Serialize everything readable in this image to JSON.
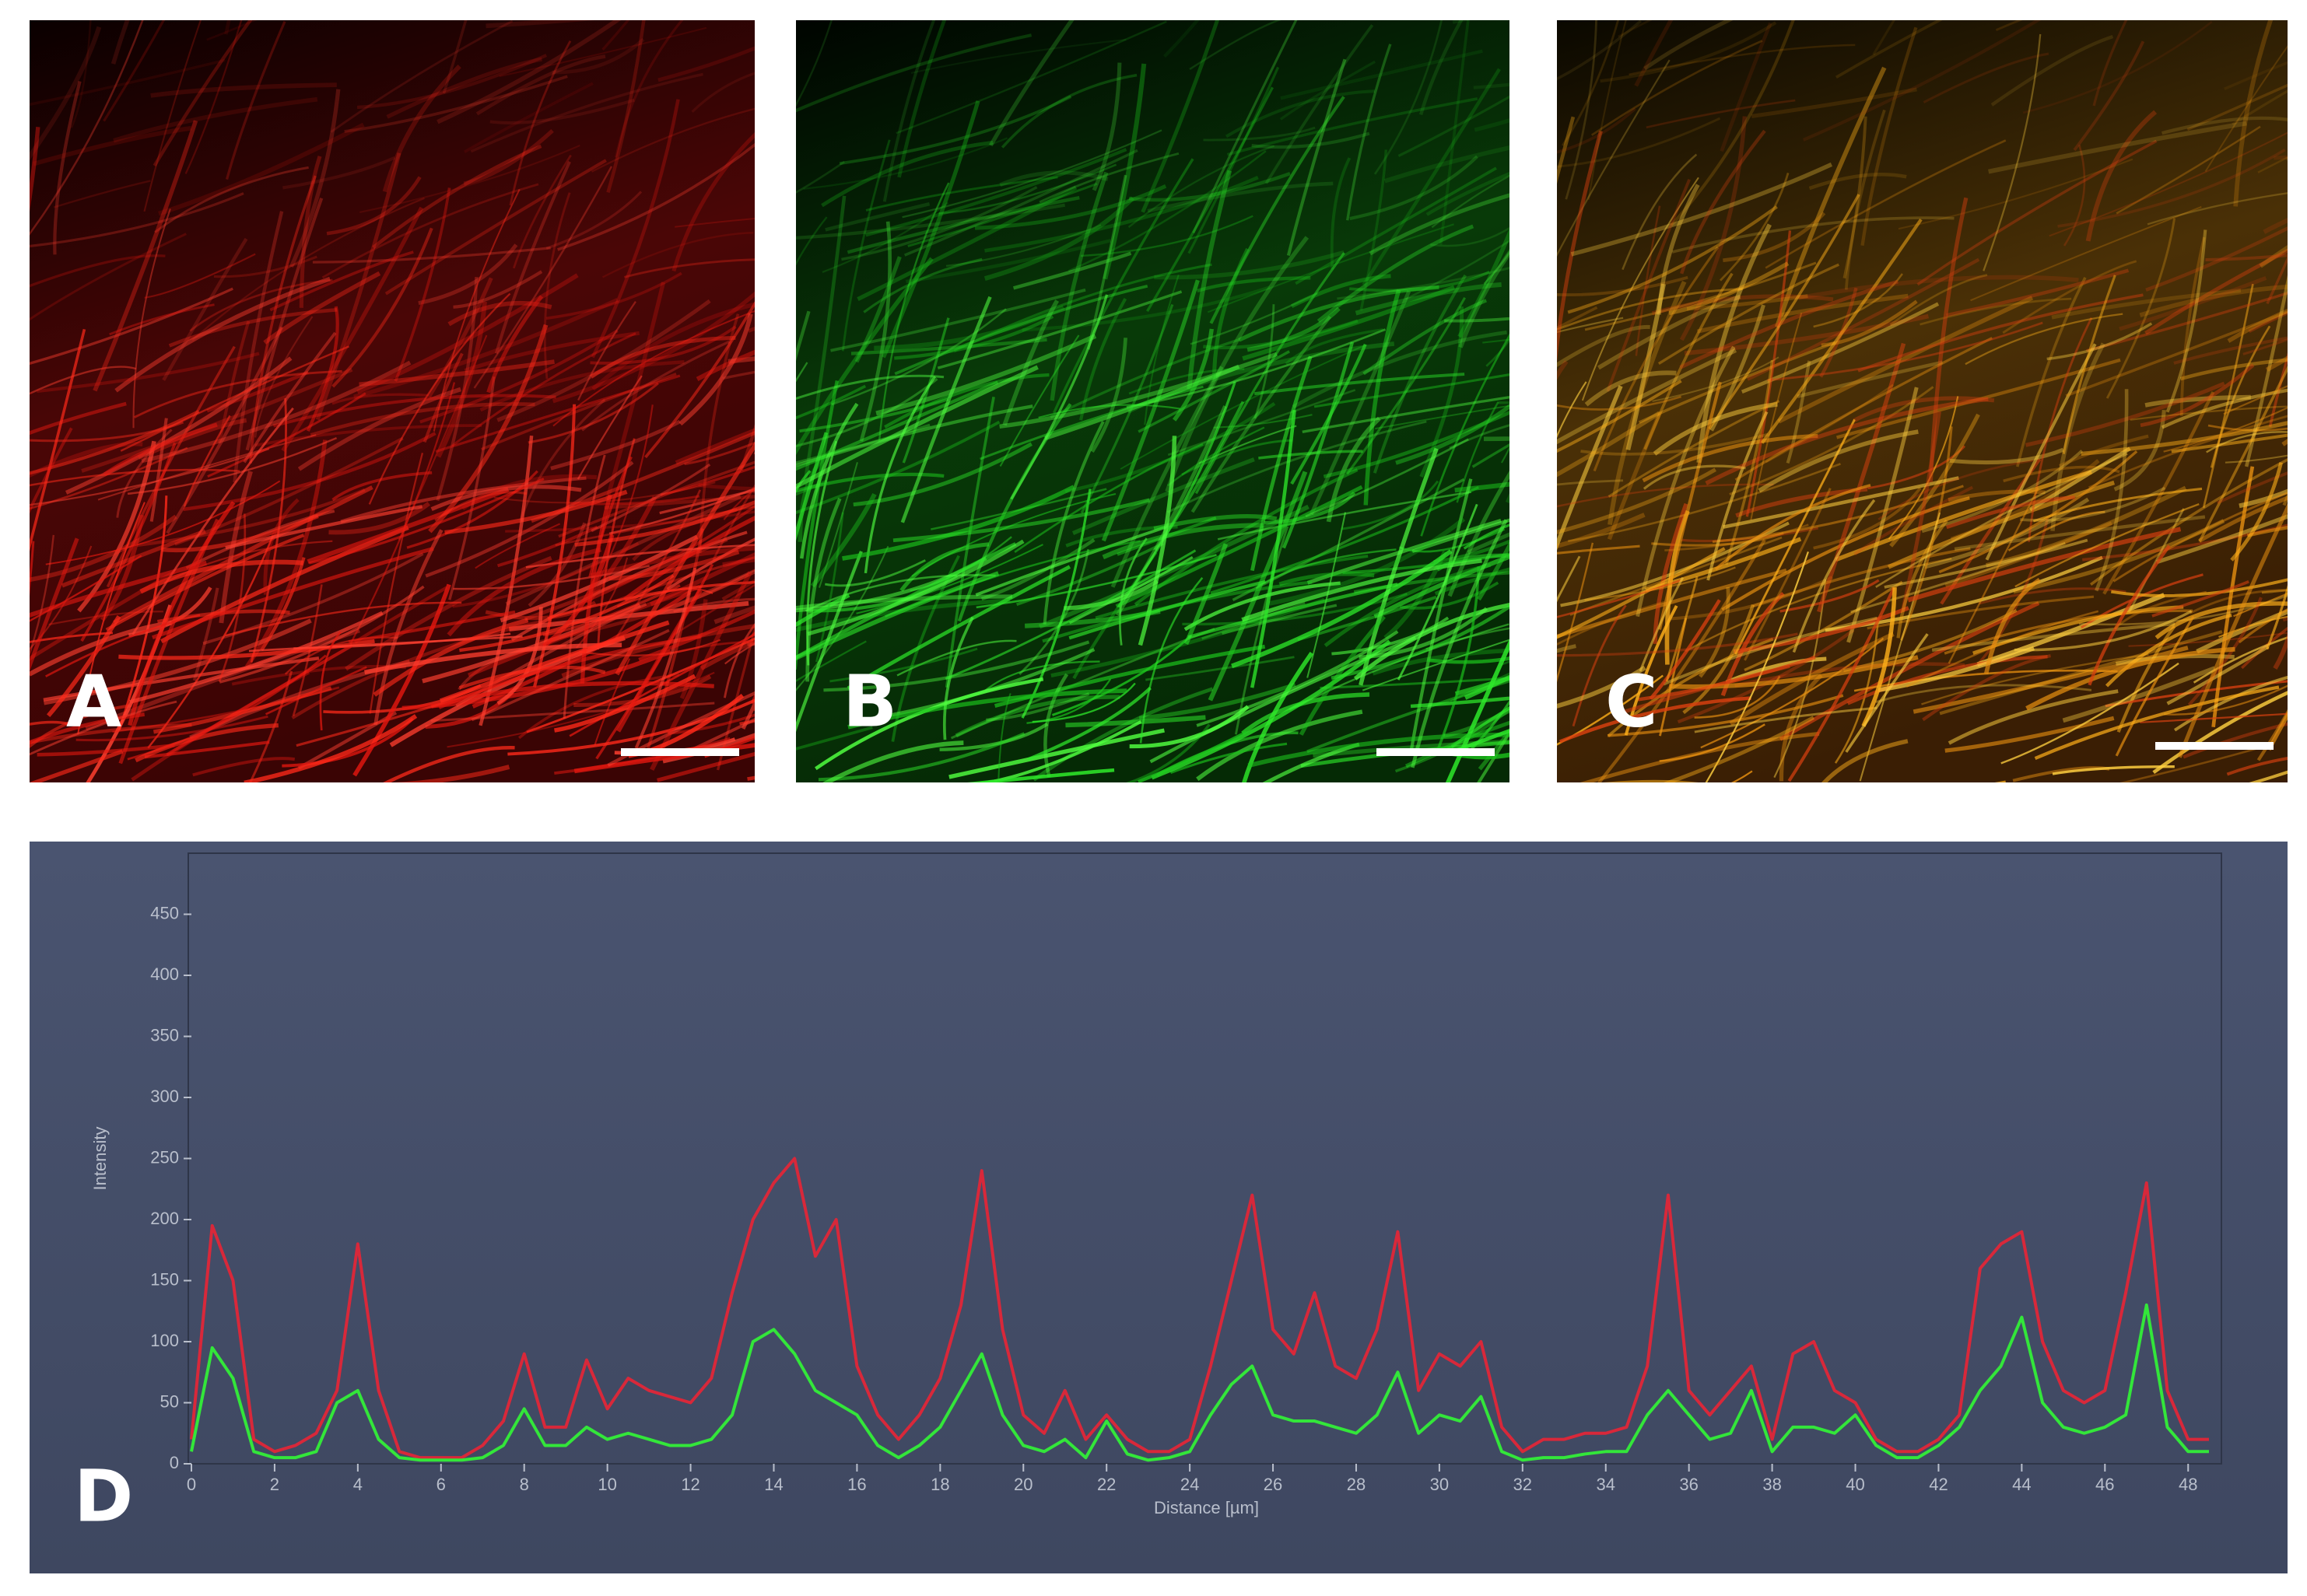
{
  "panel_labels": [
    "A",
    "B",
    "C",
    "D"
  ],
  "chart_data": {
    "type": "line",
    "xlabel": "Distance [µm]",
    "ylabel": "Intensity",
    "x": [
      0,
      0.5,
      1,
      1.5,
      2,
      2.5,
      3,
      3.5,
      4,
      4.5,
      5,
      5.5,
      6,
      6.5,
      7,
      7.5,
      8,
      8.5,
      9,
      9.5,
      10,
      10.5,
      11,
      11.5,
      12,
      12.5,
      13,
      13.5,
      14,
      14.5,
      15,
      15.5,
      16,
      16.5,
      17,
      17.5,
      18,
      18.5,
      19,
      19.5,
      20,
      20.5,
      21,
      21.5,
      22,
      22.5,
      23,
      23.5,
      24,
      24.5,
      25,
      25.5,
      26,
      26.5,
      27,
      27.5,
      28,
      28.5,
      29,
      29.5,
      30,
      30.5,
      31,
      31.5,
      32,
      32.5,
      33,
      33.5,
      34,
      34.5,
      35,
      35.5,
      36,
      36.5,
      37,
      37.5,
      38,
      38.5,
      39,
      39.5,
      40,
      40.5,
      41,
      41.5,
      42,
      42.5,
      43,
      43.5,
      44,
      44.5,
      45,
      45.5,
      46,
      46.5,
      47,
      47.5,
      48,
      48.5
    ],
    "series": [
      {
        "color": "#d8283a",
        "values": [
          20,
          195,
          150,
          20,
          10,
          15,
          25,
          60,
          180,
          60,
          10,
          5,
          5,
          5,
          15,
          35,
          90,
          30,
          30,
          85,
          45,
          70,
          60,
          55,
          50,
          70,
          140,
          200,
          230,
          250,
          170,
          200,
          80,
          40,
          20,
          40,
          70,
          130,
          240,
          110,
          40,
          25,
          60,
          20,
          40,
          20,
          10,
          10,
          20,
          80,
          150,
          220,
          110,
          90,
          140,
          80,
          70,
          110,
          190,
          60,
          90,
          80,
          100,
          30,
          10,
          20,
          20,
          25,
          25,
          30,
          80,
          220,
          60,
          40,
          60,
          80,
          20,
          90,
          100,
          60,
          50,
          20,
          10,
          10,
          20,
          40,
          160,
          180,
          190,
          100,
          60,
          50,
          60,
          140,
          230,
          60,
          20,
          20
        ]
      },
      {
        "color": "#33e63a",
        "values": [
          10,
          95,
          70,
          10,
          5,
          5,
          10,
          50,
          60,
          20,
          5,
          3,
          3,
          3,
          5,
          15,
          45,
          15,
          15,
          30,
          20,
          25,
          20,
          15,
          15,
          20,
          40,
          100,
          110,
          90,
          60,
          50,
          40,
          15,
          5,
          15,
          30,
          60,
          90,
          40,
          15,
          10,
          20,
          5,
          35,
          8,
          3,
          5,
          10,
          40,
          65,
          80,
          40,
          35,
          35,
          30,
          25,
          40,
          75,
          25,
          40,
          35,
          55,
          10,
          3,
          5,
          5,
          8,
          10,
          10,
          40,
          60,
          40,
          20,
          25,
          60,
          10,
          30,
          30,
          25,
          40,
          15,
          5,
          5,
          15,
          30,
          60,
          80,
          120,
          50,
          30,
          25,
          30,
          40,
          130,
          30,
          10,
          10
        ]
      }
    ],
    "xlim": [
      0,
      48.8
    ],
    "ylim": [
      0,
      500
    ],
    "xticks": [
      0,
      2,
      4,
      6,
      8,
      10,
      12,
      14,
      16,
      18,
      20,
      22,
      24,
      26,
      28,
      30,
      32,
      34,
      36,
      38,
      40,
      42,
      44,
      46,
      48
    ],
    "yticks": [
      0,
      50,
      100,
      150,
      200,
      250,
      300,
      350,
      400,
      450
    ]
  }
}
